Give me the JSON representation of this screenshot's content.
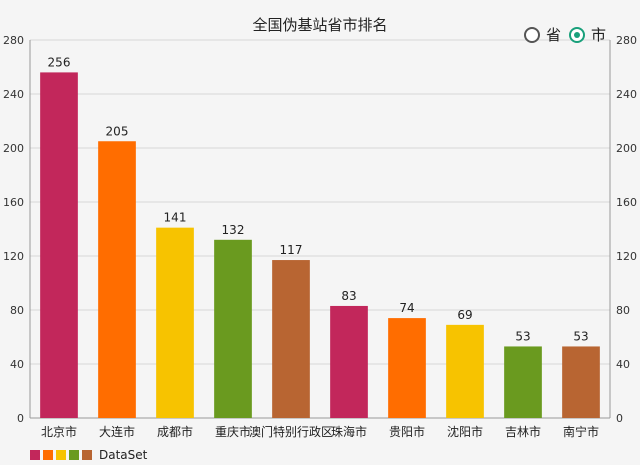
{
  "chart_data": {
    "type": "bar",
    "title": "全国伪基站省市排名",
    "categories": [
      "北京市",
      "大连市",
      "成都市",
      "重庆市",
      "澳门特别行政区",
      "珠海市",
      "贵阳市",
      "沈阳市",
      "吉林市",
      "南宁市"
    ],
    "values": [
      256,
      205,
      141,
      132,
      117,
      83,
      74,
      69,
      53,
      53
    ],
    "colors": [
      "#c2275b",
      "#ff6d00",
      "#f7c300",
      "#6a9a1f",
      "#b86532"
    ],
    "ylim": [
      0,
      280
    ],
    "yticks": [
      0,
      40,
      80,
      120,
      160,
      200,
      240,
      280
    ],
    "grid": true,
    "dual_y_axis": true,
    "legend": {
      "label": "DataSet",
      "placement": "bottom-left"
    }
  },
  "radio": {
    "options": [
      {
        "label": "省",
        "checked": false
      },
      {
        "label": "市",
        "checked": true
      }
    ]
  }
}
